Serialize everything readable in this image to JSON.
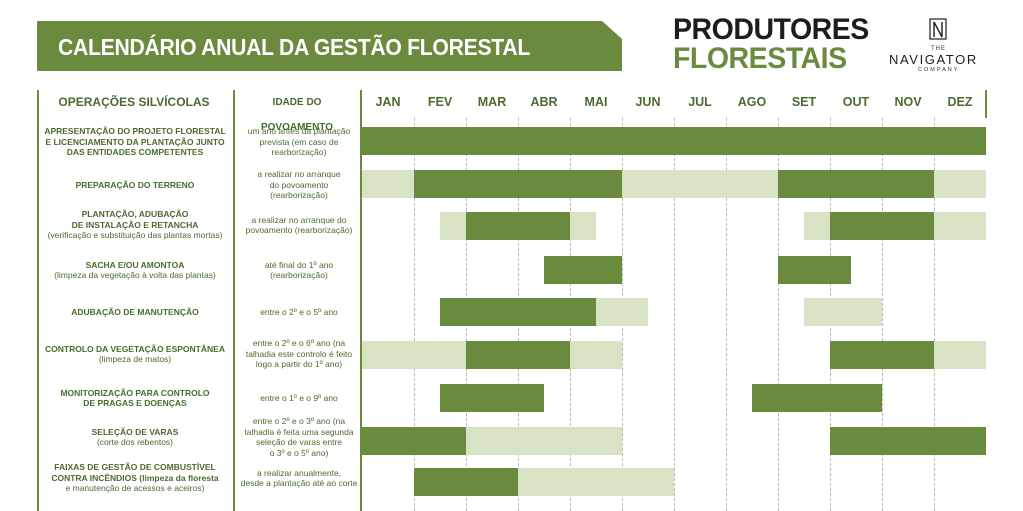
{
  "title": "CALENDÁRIO ANUAL DA GESTÃO FLORESTAL",
  "brand": {
    "line1": "PRODUTORES",
    "line2": "FLORESTAIS"
  },
  "logo": {
    "the": "THE",
    "name": "NAVIGATOR",
    "company": "COMPANY",
    "icon": "navigator-n-icon"
  },
  "headers": {
    "operations": "OPERAÇÕES SILVÍCOLAS",
    "age": "IDADE DO POVOAMENTO"
  },
  "months": [
    "JAN",
    "FEV",
    "MAR",
    "ABR",
    "MAI",
    "JUN",
    "JUL",
    "AGO",
    "SET",
    "OUT",
    "NOV",
    "DEZ"
  ],
  "colors": {
    "dark": "#6a8a3e",
    "light": "#d7e3c4",
    "title_text": "#ffffff",
    "brand_dark": "#1d1d1b"
  },
  "rows": [
    {
      "name_lines": [
        [
          "APRESENTAÇÃO DO PROJETO FLORESTAL",
          true
        ],
        [
          "E LICENCIAMENTO DA PLANTAÇÃO JUNTO",
          true
        ],
        [
          "DAS ENTIDADES COMPETENTES",
          true
        ]
      ],
      "age_lines": [
        "um ano antes da plantação",
        "prevista (em caso de",
        "rearborização)"
      ],
      "bars": [
        {
          "type": "dark",
          "start": 0,
          "end": 12
        }
      ]
    },
    {
      "name_lines": [
        [
          "PREPARAÇÃO DO TERRENO",
          true
        ]
      ],
      "age_lines": [
        "a realizar no arranque",
        "do povoamento",
        "(rearborização)"
      ],
      "bars": [
        {
          "type": "light",
          "start": 0,
          "end": 1
        },
        {
          "type": "dark",
          "start": 1,
          "end": 5
        },
        {
          "type": "light",
          "start": 5,
          "end": 8
        },
        {
          "type": "dark",
          "start": 8,
          "end": 11
        },
        {
          "type": "light",
          "start": 11,
          "end": 12
        }
      ]
    },
    {
      "name_lines": [
        [
          "PLANTAÇÃO, ADUBAÇÃO",
          true
        ],
        [
          "DE INSTALAÇÃO E RETANCHA",
          true
        ],
        [
          "(verificação e substituição das plantas mortas)",
          false
        ]
      ],
      "age_lines": [
        "a realizar no arranque do",
        "povoamento (rearborização)"
      ],
      "bars": [
        {
          "type": "light",
          "start": 1.5,
          "end": 2
        },
        {
          "type": "dark",
          "start": 2,
          "end": 4
        },
        {
          "type": "light",
          "start": 4,
          "end": 4.5
        },
        {
          "type": "light",
          "start": 8.5,
          "end": 9
        },
        {
          "type": "dark",
          "start": 9,
          "end": 11
        },
        {
          "type": "light",
          "start": 11,
          "end": 12
        }
      ]
    },
    {
      "name_lines": [
        [
          "SACHA E/OU AMONTOA",
          true
        ],
        [
          "(limpeza da vegetação à volta das plantas)",
          false
        ]
      ],
      "age_lines": [
        "até final do 1º ano",
        "(rearborização)"
      ],
      "bars": [
        {
          "type": "dark",
          "start": 3.5,
          "end": 5
        },
        {
          "type": "dark",
          "start": 8,
          "end": 9.4
        }
      ]
    },
    {
      "name_lines": [
        [
          "ADUBAÇÃO DE MANUTENÇÃO",
          true
        ]
      ],
      "age_lines": [
        "entre o 2º e o 5º ano"
      ],
      "bars": [
        {
          "type": "dark",
          "start": 1.5,
          "end": 4.5
        },
        {
          "type": "light",
          "start": 4.5,
          "end": 5.5
        },
        {
          "type": "light",
          "start": 8.5,
          "end": 10
        }
      ]
    },
    {
      "name_lines": [
        [
          "CONTROLO DA VEGETAÇÃO ESPONTÂNEA",
          true
        ],
        [
          "(limpeza de matos)",
          false
        ]
      ],
      "age_lines": [
        "entre o 2º e o 6º ano (na",
        "talhadia este controlo é feito",
        "logo a partir do 1º ano)"
      ],
      "bars": [
        {
          "type": "light",
          "start": 0,
          "end": 2
        },
        {
          "type": "dark",
          "start": 2,
          "end": 4
        },
        {
          "type": "light",
          "start": 4,
          "end": 5
        },
        {
          "type": "dark",
          "start": 9,
          "end": 11
        },
        {
          "type": "light",
          "start": 11,
          "end": 12
        }
      ]
    },
    {
      "name_lines": [
        [
          "MONITORIZAÇÃO PARA CONTROLO",
          true
        ],
        [
          "DE PRAGAS E DOENÇAS",
          true
        ]
      ],
      "age_lines": [
        "entre o 1º e o 9º ano"
      ],
      "bars": [
        {
          "type": "dark",
          "start": 1.5,
          "end": 3.5
        },
        {
          "type": "dark",
          "start": 7.5,
          "end": 10
        }
      ]
    },
    {
      "name_lines": [
        [
          "SELEÇÃO DE VARAS",
          true
        ],
        [
          "(corte dos rebentos)",
          false
        ]
      ],
      "age_lines": [
        "entre o 2º e o 3º ano (na",
        "talhadia é feita uma segunda",
        "seleção de varas entre",
        "o 3º e o 5º ano)"
      ],
      "bars": [
        {
          "type": "dark",
          "start": 0,
          "end": 2
        },
        {
          "type": "light",
          "start": 2,
          "end": 5
        },
        {
          "type": "dark",
          "start": 9,
          "end": 12
        }
      ]
    },
    {
      "name_lines": [
        [
          "FAIXAS DE GESTÃO DE COMBUSTÍVEL",
          true
        ],
        [
          "CONTRA INCÊNDIOS (limpeza da floresta",
          true
        ],
        [
          "e manutenção de acessos e aceiros)",
          false
        ]
      ],
      "age_lines": [
        "a realizar anualmente,",
        "desde a plantação até ao corte"
      ],
      "bars": [
        {
          "type": "dark",
          "start": 1,
          "end": 3
        },
        {
          "type": "light",
          "start": 3,
          "end": 6
        }
      ]
    }
  ]
}
